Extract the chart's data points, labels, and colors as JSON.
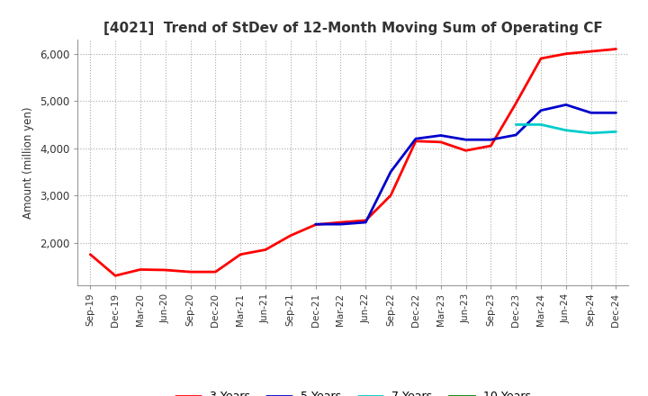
{
  "title": "[4021]  Trend of StDev of 12-Month Moving Sum of Operating CF",
  "ylabel": "Amount (million yen)",
  "background_color": "#ffffff",
  "grid_color": "#aaaaaa",
  "series": {
    "3 Years": {
      "color": "#ff0000",
      "x": [
        "Sep-19",
        "Dec-19",
        "Mar-20",
        "Jun-20",
        "Sep-20",
        "Dec-20",
        "Mar-21",
        "Jun-21",
        "Sep-21",
        "Dec-21",
        "Mar-22",
        "Jun-22",
        "Sep-22",
        "Dec-22",
        "Mar-23",
        "Jun-23",
        "Sep-23",
        "Dec-23",
        "Mar-24",
        "Jun-24",
        "Sep-24",
        "Dec-24"
      ],
      "y": [
        1750,
        1300,
        1430,
        1420,
        1380,
        1380,
        1750,
        1850,
        2150,
        2380,
        2430,
        2470,
        3000,
        4150,
        4130,
        3950,
        4050,
        4950,
        5900,
        6000,
        6050,
        6100
      ]
    },
    "5 Years": {
      "color": "#0000cc",
      "x": [
        "Dec-21",
        "Mar-22",
        "Jun-22",
        "Sep-22",
        "Dec-22",
        "Mar-23",
        "Jun-23",
        "Sep-23",
        "Dec-23",
        "Mar-24",
        "Jun-24",
        "Sep-24",
        "Dec-24"
      ],
      "y": [
        2390,
        2390,
        2430,
        3500,
        4200,
        4270,
        4180,
        4180,
        4280,
        4800,
        4920,
        4750,
        4750
      ]
    },
    "7 Years": {
      "color": "#00cccc",
      "x": [
        "Dec-23",
        "Mar-24",
        "Jun-24",
        "Sep-24",
        "Dec-24"
      ],
      "y": [
        4500,
        4500,
        4380,
        4320,
        4350
      ]
    },
    "10 Years": {
      "color": "#008000",
      "x": [],
      "y": []
    }
  },
  "xlim_start": "Sep-19",
  "xlim_end": "Dec-24",
  "ylim": [
    1100,
    6300
  ],
  "yticks": [
    2000,
    3000,
    4000,
    5000,
    6000
  ],
  "xticks": [
    "Sep-19",
    "Dec-19",
    "Mar-20",
    "Jun-20",
    "Sep-20",
    "Dec-20",
    "Mar-21",
    "Jun-21",
    "Sep-21",
    "Dec-21",
    "Mar-22",
    "Jun-22",
    "Sep-22",
    "Dec-22",
    "Mar-23",
    "Jun-23",
    "Sep-23",
    "Dec-23",
    "Mar-24",
    "Jun-24",
    "Sep-24",
    "Dec-24"
  ],
  "title_color": "#333333",
  "title_fontsize": 11,
  "linewidth": 2.0
}
